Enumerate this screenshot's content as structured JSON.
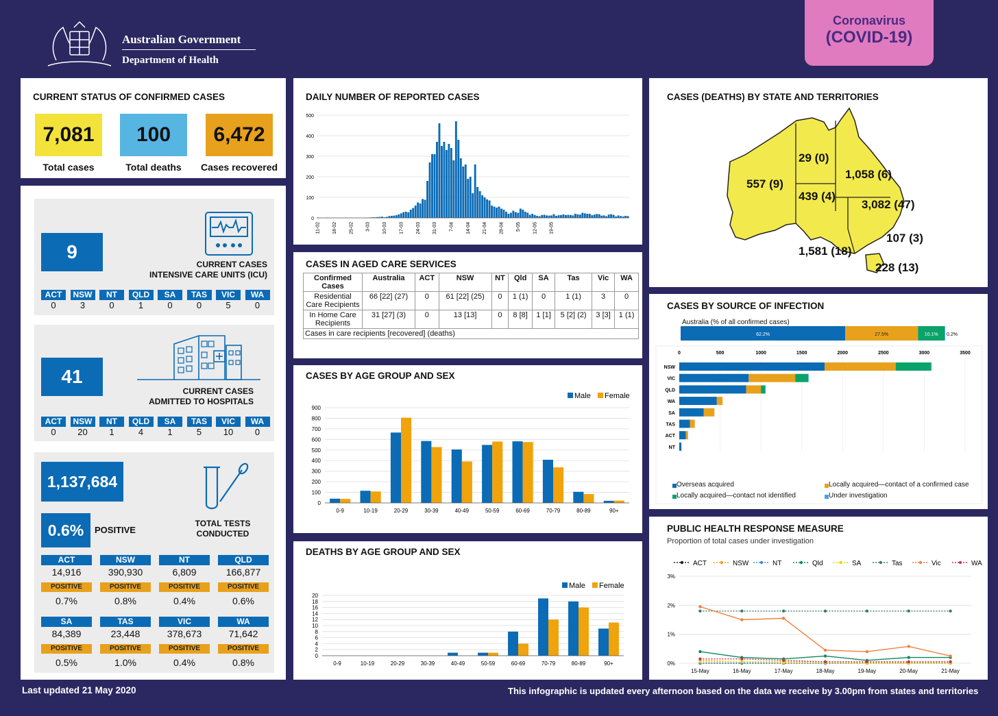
{
  "header": {
    "gov_line1": "Australian Government",
    "gov_line2": "Department of Health",
    "badge_line1": "Coronavirus",
    "badge_line2": "(COVID-19)"
  },
  "status": {
    "title": "CURRENT STATUS OF CONFIRMED CASES",
    "total_cases": "7,081",
    "total_cases_label": "Total cases",
    "total_deaths": "100",
    "total_deaths_label": "Total deaths",
    "recovered": "6,472",
    "recovered_label": "Cases recovered"
  },
  "icu": {
    "value": "9",
    "label1": "CURRENT CASES",
    "label2": "INTENSIVE CARE UNITS (ICU)",
    "states": [
      "ACT",
      "NSW",
      "NT",
      "QLD",
      "SA",
      "TAS",
      "VIC",
      "WA"
    ],
    "values": [
      "0",
      "3",
      "0",
      "1",
      "0",
      "0",
      "5",
      "0"
    ]
  },
  "hospital": {
    "value": "41",
    "label1": "CURRENT CASES",
    "label2": "ADMITTED TO HOSPITALS",
    "states": [
      "ACT",
      "NSW",
      "NT",
      "QLD",
      "SA",
      "TAS",
      "VIC",
      "WA"
    ],
    "values": [
      "0",
      "20",
      "1",
      "4",
      "1",
      "5",
      "10",
      "0"
    ]
  },
  "tests": {
    "total": "1,137,684",
    "positive_pct": "0.6%",
    "positive_label": "POSITIVE",
    "label1": "TOTAL TESTS",
    "label2": "CONDUCTED",
    "positive_tag": "POSITIVE",
    "states": [
      {
        "name": "ACT",
        "tests": "14,916",
        "pct": "0.7%"
      },
      {
        "name": "NSW",
        "tests": "390,930",
        "pct": "0.8%"
      },
      {
        "name": "NT",
        "tests": "6,809",
        "pct": "0.4%"
      },
      {
        "name": "QLD",
        "tests": "166,877",
        "pct": "0.6%"
      },
      {
        "name": "SA",
        "tests": "84,389",
        "pct": "0.5%"
      },
      {
        "name": "TAS",
        "tests": "23,448",
        "pct": "1.0%"
      },
      {
        "name": "VIC",
        "tests": "378,673",
        "pct": "0.4%"
      },
      {
        "name": "WA",
        "tests": "71,642",
        "pct": "0.8%"
      }
    ]
  },
  "daily": {
    "title": "DAILY NUMBER OF REPORTED CASES"
  },
  "aged": {
    "title": "CASES IN AGED CARE SERVICES",
    "head": [
      "Confirmed Cases",
      "Australia",
      "ACT",
      "NSW",
      "NT",
      "Qld",
      "SA",
      "Tas",
      "Vic",
      "WA"
    ],
    "rows": [
      [
        "Residential Care Recipients",
        "66 [22] (27)",
        "0",
        "61 [22] (25)",
        "0",
        "1 (1)",
        "0",
        "1 (1)",
        "3",
        "0"
      ],
      [
        "In Home Care Recipients",
        "31 [27] (3)",
        "0",
        "13 [13]",
        "0",
        "8 [8]",
        "1 [1]",
        "5 [2] (2)",
        "3 [3]",
        "1 (1)"
      ]
    ],
    "note": "Cases in care recipients [recovered] (deaths)"
  },
  "age_cases": {
    "title": "CASES BY AGE GROUP AND SEX"
  },
  "age_deaths": {
    "title": "DEATHS BY AGE GROUP AND SEX"
  },
  "map": {
    "title": "CASES (DEATHS) BY STATE AND TERRITORIES",
    "wa": "557 (9)",
    "nt": "29 (0)",
    "qld": "1,058 (6)",
    "sa": "439 (4)",
    "nsw": "3,082 (47)",
    "act": "107 (3)",
    "vic": "1,581 (18)",
    "tas": "228 (13)"
  },
  "source": {
    "title": "CASES BY SOURCE OF INFECTION",
    "aus_label": "Australia (% of all confirmed cases)",
    "aus_pcts": [
      "62.2%",
      "27.5%",
      "10.1%",
      "0.2%"
    ],
    "legend": [
      "Overseas acquired",
      "Locally acquired—contact of a confirmed case",
      "Locally acquired—contact not identified",
      "Under investigation"
    ]
  },
  "phr": {
    "title": "PUBLIC HEALTH RESPONSE MEASURE",
    "subtitle": "Proportion of total cases under investigation"
  },
  "footer": {
    "updated": "Last updated 21 May 2020",
    "note": "This infographic is updated every afternoon based on the data we receive by 3.00pm from states and territories"
  },
  "chart_data": [
    {
      "type": "bar",
      "name": "daily",
      "x_ticks": [
        "11-02",
        "18-02",
        "25-02",
        "3-03",
        "10-03",
        "17-03",
        "24-03",
        "31-03",
        "7-04",
        "14-04",
        "21-04",
        "28-04",
        "5-05",
        "12-05",
        "19-05"
      ],
      "ylim": [
        0,
        500
      ],
      "yticks": [
        0,
        100,
        200,
        300,
        400,
        500
      ],
      "values": [
        2,
        0,
        0,
        0,
        1,
        0,
        0,
        0,
        0,
        0,
        0,
        0,
        0,
        0,
        0,
        0,
        0,
        0,
        0,
        0,
        1,
        1,
        2,
        3,
        3,
        4,
        5,
        6,
        3,
        5,
        9,
        10,
        11,
        13,
        17,
        22,
        28,
        30,
        27,
        40,
        48,
        60,
        75,
        70,
        92,
        88,
        180,
        270,
        310,
        310,
        370,
        460,
        350,
        370,
        330,
        360,
        340,
        280,
        470,
        380,
        290,
        250,
        260,
        190,
        200,
        120,
        260,
        150,
        130,
        110,
        100,
        90,
        85,
        60,
        55,
        50,
        55,
        45,
        40,
        30,
        20,
        25,
        35,
        28,
        25,
        45,
        40,
        30,
        25,
        15,
        20,
        14,
        10,
        8,
        14,
        15,
        12,
        11,
        12,
        18,
        10,
        13,
        14,
        17,
        14,
        15,
        14,
        12,
        20,
        17,
        16,
        25,
        22,
        20,
        20,
        13,
        16,
        19,
        18,
        11,
        12,
        8,
        16,
        18,
        15,
        7,
        12,
        9,
        7,
        10,
        9
      ]
    },
    {
      "type": "bar",
      "name": "cases_by_age",
      "categories": [
        "0-9",
        "10-19",
        "20-29",
        "30-39",
        "40-49",
        "50-59",
        "60-69",
        "70-79",
        "80-89",
        "90+"
      ],
      "ylim": [
        0,
        900
      ],
      "yticks": [
        0,
        100,
        200,
        300,
        400,
        500,
        600,
        700,
        800,
        900
      ],
      "series": [
        {
          "name": "Male",
          "color": "#0b6bb5",
          "values": [
            40,
            115,
            665,
            585,
            505,
            548,
            582,
            408,
            105,
            20
          ]
        },
        {
          "name": "Female",
          "color": "#f0a30a",
          "values": [
            38,
            108,
            805,
            528,
            392,
            580,
            575,
            336,
            84,
            22
          ]
        }
      ]
    },
    {
      "type": "bar",
      "name": "deaths_by_age",
      "categories": [
        "0-9",
        "10-19",
        "20-29",
        "30-39",
        "40-49",
        "50-59",
        "60-69",
        "70-79",
        "80-89",
        "90+"
      ],
      "ylim": [
        0,
        20
      ],
      "yticks": [
        0,
        2,
        4,
        6,
        8,
        10,
        12,
        14,
        16,
        18,
        20
      ],
      "series": [
        {
          "name": "Male",
          "color": "#0b6bb5",
          "values": [
            0,
            0,
            0,
            0,
            1,
            1,
            8,
            19,
            18,
            9
          ]
        },
        {
          "name": "Female",
          "color": "#f0a30a",
          "values": [
            0,
            0,
            0,
            0,
            0,
            1,
            4,
            12,
            16,
            11
          ]
        }
      ]
    },
    {
      "type": "bar",
      "name": "source",
      "categories": [
        "NSW",
        "VIC",
        "QLD",
        "WA",
        "SA",
        "TAS",
        "ACT",
        "NT"
      ],
      "xlim": [
        0,
        3500
      ],
      "xticks": [
        0,
        500,
        1000,
        1500,
        2000,
        2500,
        3000,
        3500
      ],
      "series": [
        {
          "name": "Overseas acquired",
          "color": "#0b6bb5",
          "values": [
            1780,
            850,
            820,
            460,
            300,
            130,
            80,
            25
          ]
        },
        {
          "name": "Locally acquired—contact of a confirmed case",
          "color": "#e8a11c",
          "values": [
            870,
            570,
            180,
            70,
            130,
            60,
            20,
            2
          ]
        },
        {
          "name": "Locally acquired—contact not identified",
          "color": "#0aa36a",
          "values": [
            430,
            160,
            55,
            0,
            0,
            0,
            5,
            0
          ]
        },
        {
          "name": "Under investigation",
          "color": "#4aa3df",
          "values": [
            10,
            5,
            2,
            0,
            0,
            0,
            0,
            0
          ]
        }
      ]
    },
    {
      "type": "line",
      "name": "phr",
      "x": [
        "15-May",
        "16-May",
        "17-May",
        "18-May",
        "19-May",
        "20-May",
        "21-May"
      ],
      "ylim": [
        0,
        3
      ],
      "yticks": [
        "0%",
        "1%",
        "2%",
        "3%"
      ],
      "series": [
        {
          "name": "ACT",
          "color": "#222222",
          "values": [
            0,
            0,
            0,
            0,
            0,
            0,
            0
          ]
        },
        {
          "name": "NSW",
          "color": "#e8a11c",
          "values": [
            0.1,
            0.05,
            0.05,
            0.05,
            0.02,
            0.02,
            0.05
          ]
        },
        {
          "name": "NT",
          "color": "#3a88d6",
          "values": [
            0,
            0,
            0,
            0,
            0,
            0,
            0
          ]
        },
        {
          "name": "Qld",
          "color": "#0a8a5a",
          "values": [
            0.4,
            0.2,
            0.15,
            0.25,
            0.1,
            0.2,
            0.2
          ]
        },
        {
          "name": "SA",
          "color": "#e6d60a",
          "values": [
            0.05,
            0.05,
            0.02,
            0.02,
            0,
            0,
            0
          ]
        },
        {
          "name": "Tas",
          "color": "#3d7a6a",
          "values": [
            1.8,
            1.8,
            1.8,
            1.8,
            1.8,
            1.8,
            1.8
          ]
        },
        {
          "name": "Vic",
          "color": "#f08040",
          "values": [
            1.95,
            1.5,
            1.55,
            0.45,
            0.4,
            0.58,
            0.25
          ]
        },
        {
          "name": "WA",
          "color": "#d03050",
          "values": [
            0.15,
            0.15,
            0.1,
            0.05,
            0.05,
            0.05,
            0.05
          ]
        }
      ]
    }
  ]
}
